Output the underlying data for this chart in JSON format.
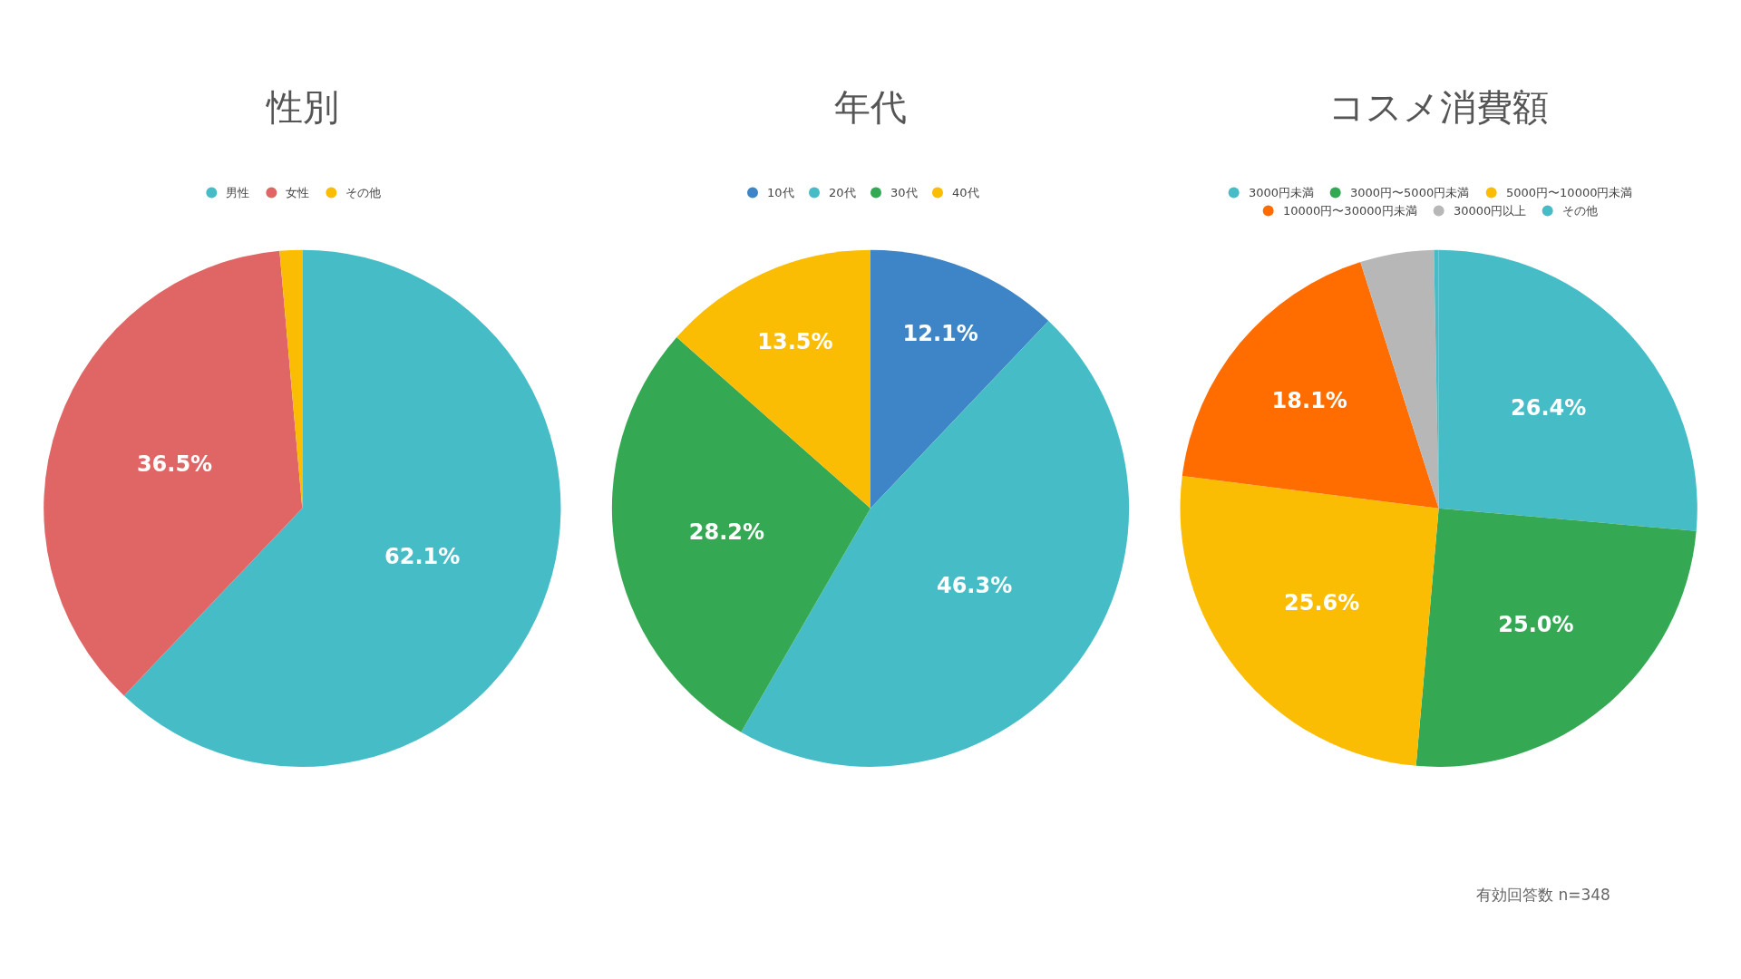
{
  "chart_data": [
    {
      "type": "pie",
      "title": "性別",
      "categories": [
        "男性",
        "女性",
        "その他"
      ],
      "values": [
        62.1,
        36.5,
        1.4
      ],
      "colors": [
        "#46bdc6",
        "#e06666",
        "#fbbc04"
      ],
      "value_labels": [
        "62.1%",
        "36.5%",
        null
      ],
      "legend": "top"
    },
    {
      "type": "pie",
      "title": "年代",
      "categories": [
        "10代",
        "20代",
        "30代",
        "40代"
      ],
      "values": [
        12.1,
        46.3,
        28.2,
        13.5
      ],
      "colors": [
        "#3d85c6",
        "#46bdc6",
        "#34a853",
        "#fbbc04"
      ],
      "value_labels": [
        "12.1%",
        "46.3%",
        "28.2%",
        "13.5%"
      ],
      "legend": "top"
    },
    {
      "type": "pie",
      "title": "コスメ消費額",
      "categories": [
        "3000円未満",
        "3000円〜5000円未満",
        "5000円〜10000円未満",
        "10000円〜30000円未満",
        "30000円以上",
        "その他"
      ],
      "values": [
        26.4,
        25.0,
        25.6,
        18.1,
        4.6,
        0.3
      ],
      "colors": [
        "#46bdc6",
        "#34a853",
        "#fbbc04",
        "#ff6d01",
        "#b7b7b7",
        "#46bdc6"
      ],
      "value_labels": [
        "26.4%",
        "25.0%",
        "25.6%",
        "18.1%",
        null,
        null
      ],
      "legend": "top",
      "annotations": [
        "有効回答数 n=348"
      ]
    }
  ]
}
